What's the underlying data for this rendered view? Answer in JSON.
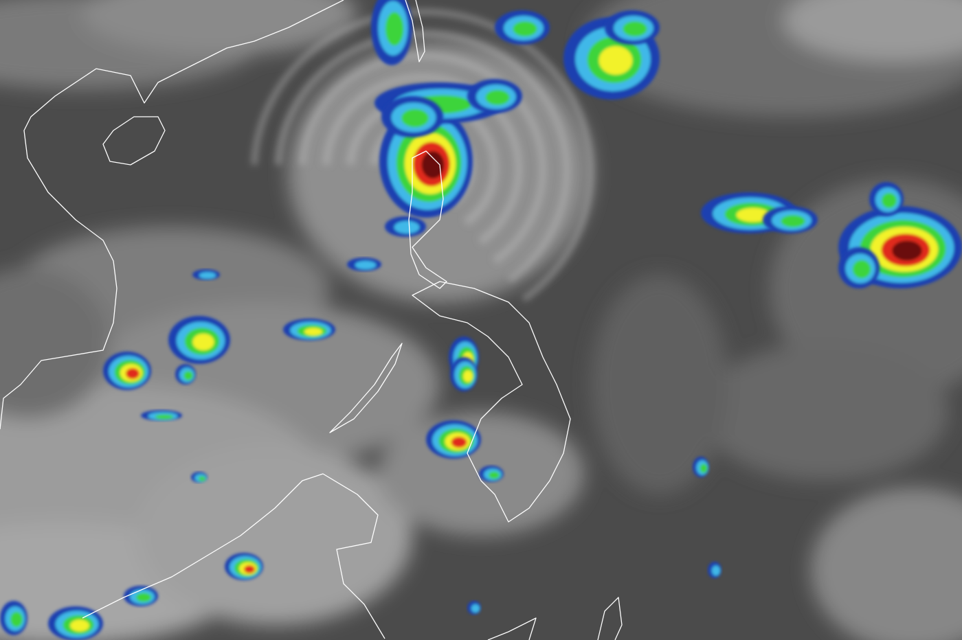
{
  "image": {
    "kind": "infrared satellite imagery",
    "colors": {
      "ocean_background": "#4b4b4b",
      "cloud_grey": "#9a9a9a",
      "cloud_light": "#d2d2d2",
      "coastline": "#ffffff",
      "enhance_blue": "#1c3fb0",
      "enhance_cyan": "#3fb8e8",
      "enhance_green": "#3ed43a",
      "enhance_yellow": "#f2f22a",
      "enhance_red": "#e02a1a",
      "enhance_darkred": "#6a1010"
    }
  }
}
